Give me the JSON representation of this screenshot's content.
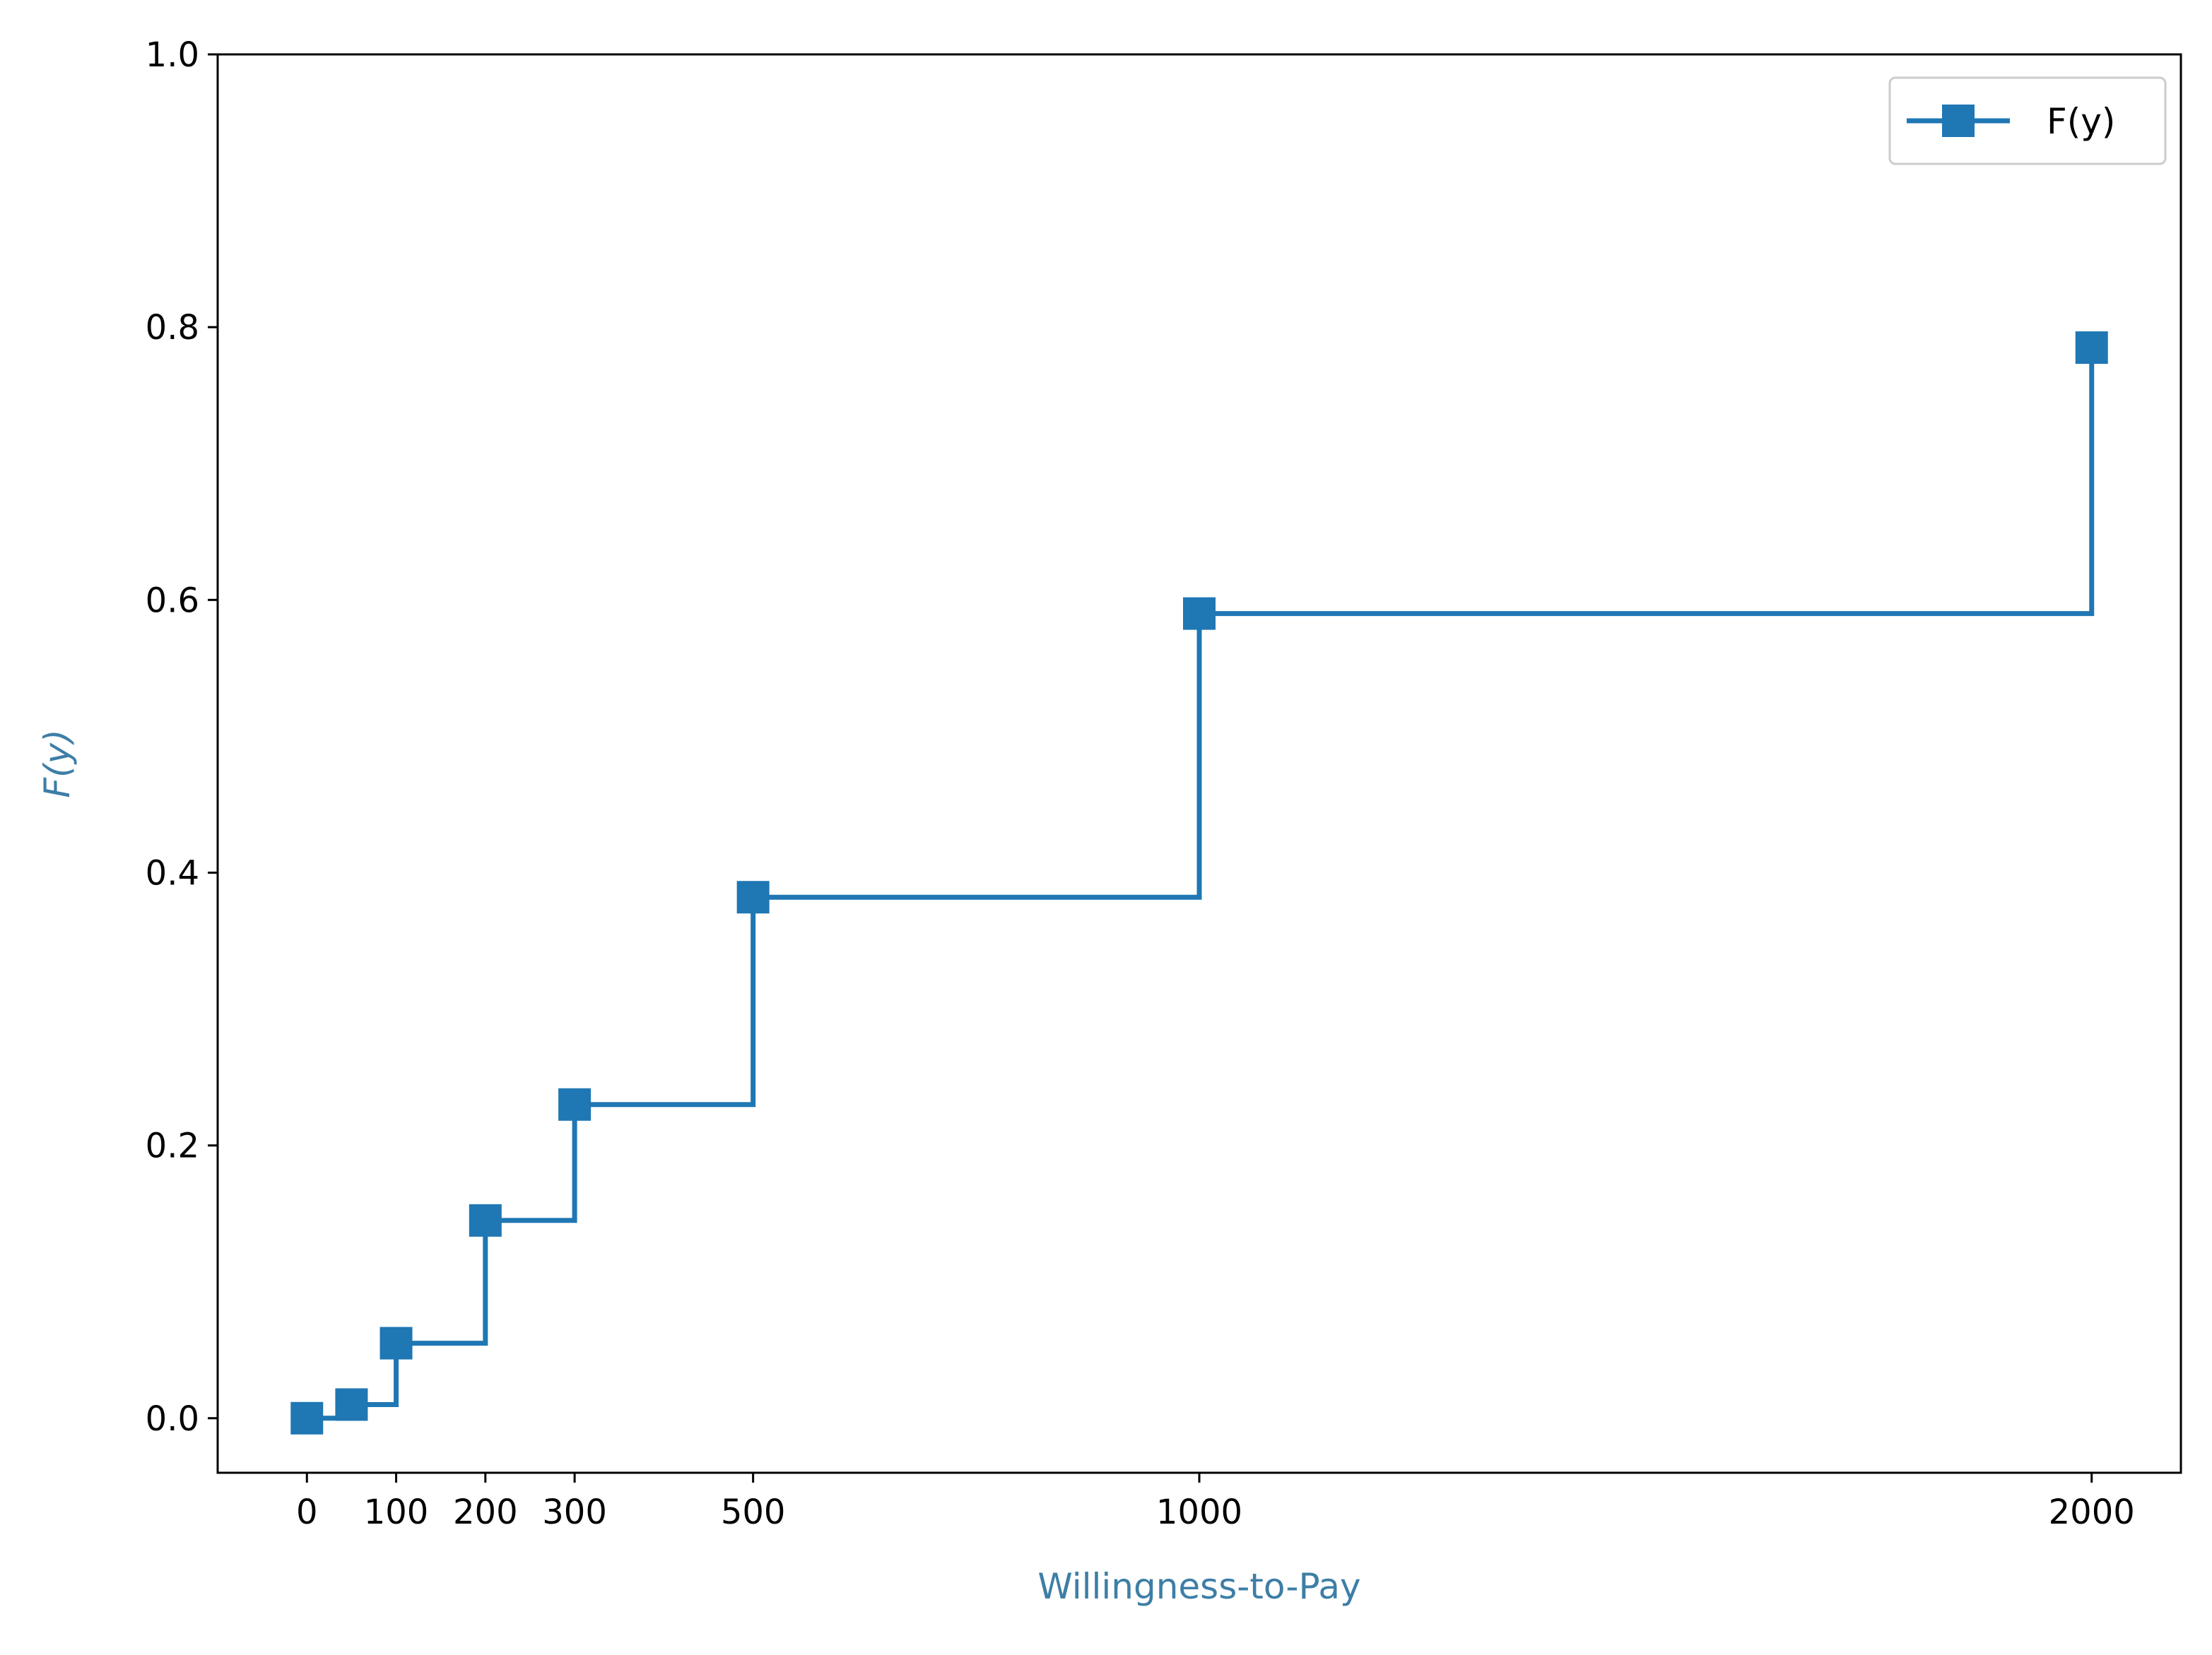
{
  "chart_data": {
    "type": "line",
    "step": "post",
    "title": "",
    "xlabel": "Willingness-to-Pay",
    "ylabel": "F(y)",
    "label_color": "#3d7ea6",
    "xlim": [
      -100,
      2100
    ],
    "ylim": [
      -0.04,
      1.0
    ],
    "xticks": [
      0,
      100,
      200,
      300,
      500,
      1000,
      2000
    ],
    "xtick_labels": [
      "0",
      "100",
      "200",
      "300",
      "500",
      "1000",
      "2000"
    ],
    "yticks": [
      0.0,
      0.2,
      0.4,
      0.6,
      0.8,
      1.0
    ],
    "ytick_labels": [
      "0.0",
      "0.2",
      "0.4",
      "0.6",
      "0.8",
      "1.0"
    ],
    "grid": false,
    "legend_position": "top-right",
    "series": [
      {
        "name": "F(y)",
        "color": "#1f77b4",
        "marker": "square",
        "x": [
          0,
          50,
          100,
          200,
          300,
          500,
          1000,
          2000
        ],
        "y": [
          0.0,
          0.01,
          0.055,
          0.145,
          0.23,
          0.382,
          0.59,
          0.785
        ]
      }
    ]
  }
}
